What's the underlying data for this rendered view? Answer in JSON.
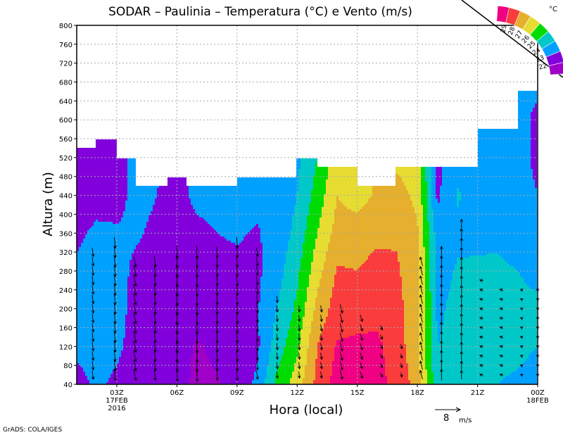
{
  "chart_data": {
    "type": "heatmap",
    "subtype": "filled-contour-with-wind-vectors",
    "title": "SODAR – Paulinia – Temperatura (°C) e Vento (m/s)",
    "xlabel": "Hora (local)",
    "ylabel": "Altura (m)",
    "xlim_hours": [
      1,
      24
    ],
    "ylim": [
      40,
      800
    ],
    "yticks": [
      40,
      80,
      120,
      160,
      200,
      240,
      280,
      320,
      360,
      400,
      440,
      480,
      520,
      560,
      600,
      640,
      680,
      720,
      760,
      800
    ],
    "xticks": [
      {
        "hour": 3,
        "label": "03Z",
        "sub1": "17FEB",
        "sub2": "2016"
      },
      {
        "hour": 6,
        "label": "06Z"
      },
      {
        "hour": 9,
        "label": "09Z"
      },
      {
        "hour": 12,
        "label": "12Z"
      },
      {
        "hour": 15,
        "label": "15Z"
      },
      {
        "hour": 18,
        "label": "18Z"
      },
      {
        "hour": 21,
        "label": "21Z"
      },
      {
        "hour": 24,
        "label": "00Z",
        "sub1": "18FEB"
      }
    ],
    "grid": true,
    "legend": {
      "placement": "top-right",
      "unit": "°C",
      "levels": [
        22,
        23,
        24,
        25,
        26,
        27,
        28,
        29
      ],
      "labels": [
        "22",
        "23",
        "24",
        "25",
        "26",
        "27",
        "28",
        "29"
      ],
      "colors": [
        "#a000c8",
        "#8200dc",
        "#00a0ff",
        "#00c8c8",
        "#00dc00",
        "#e6dc32",
        "#e6af2d",
        "#fa3c3c",
        "#f00082"
      ]
    },
    "heights": [
      40,
      120,
      200,
      280,
      360,
      440,
      520,
      600,
      680
    ],
    "hours": [
      1,
      2,
      3,
      4,
      5,
      6,
      7,
      8,
      9,
      10,
      11,
      12,
      13,
      14,
      15,
      16,
      17,
      18,
      19,
      20,
      21,
      22,
      23,
      24
    ],
    "temperature": [
      [
        22.6,
        23.3,
        23.3,
        23.2,
        22.8,
        22.5,
        22.5,
        22.5,
        22.5
      ],
      [
        23.2,
        23.4,
        23.4,
        23.4,
        23.2,
        22.6,
        22.5,
        22.5,
        22.5
      ],
      [
        22.8,
        23.2,
        23.3,
        23.3,
        23.1,
        22.7,
        22.6,
        22.6,
        22.6
      ],
      [
        22.5,
        22.6,
        22.7,
        22.8,
        23.1,
        23.3,
        23.3,
        23.3,
        23.3
      ],
      [
        22.4,
        22.5,
        22.6,
        22.7,
        22.8,
        23.0,
        23.1,
        23.1,
        23.1
      ],
      [
        22.3,
        22.4,
        22.5,
        22.6,
        22.7,
        22.7,
        22.7,
        22.7,
        22.7
      ],
      [
        21.8,
        21.9,
        22.4,
        22.6,
        22.8,
        23.2,
        23.2,
        23.2,
        23.2
      ],
      [
        21.9,
        22.2,
        22.5,
        22.7,
        23.0,
        23.3,
        23.3,
        23.3,
        23.3
      ],
      [
        22.4,
        22.6,
        22.7,
        22.8,
        23.1,
        23.4,
        23.4,
        23.4,
        23.4
      ],
      [
        23.2,
        22.8,
        22.9,
        22.8,
        22.9,
        23.3,
        23.3,
        23.3,
        23.3
      ],
      [
        25.3,
        24.5,
        24.0,
        23.6,
        23.4,
        23.3,
        23.3,
        23.3,
        23.3
      ],
      [
        26.5,
        25.8,
        25.2,
        24.8,
        24.3,
        24.0,
        23.8,
        23.8,
        23.8
      ],
      [
        28.3,
        28.0,
        27.3,
        26.6,
        26.0,
        25.4,
        25.0,
        25.0,
        25.0
      ],
      [
        29.4,
        29.1,
        28.5,
        28.1,
        27.4,
        27.0,
        26.6,
        26.6,
        26.6
      ],
      [
        29.3,
        29.2,
        28.6,
        28.0,
        27.6,
        26.5,
        26.5,
        26.5,
        26.5
      ],
      [
        29.2,
        29.2,
        28.7,
        28.3,
        27.8,
        27.2,
        27.0,
        27.0,
        27.0
      ],
      [
        28.8,
        28.5,
        28.3,
        28.1,
        27.9,
        27.3,
        26.8,
        26.8,
        26.8
      ],
      [
        27.5,
        27.2,
        27.3,
        27.4,
        27.1,
        26.8,
        26.5,
        26.5,
        26.5
      ],
      [
        24.3,
        24.0,
        23.8,
        23.6,
        23.5,
        22.8,
        22.8,
        22.8,
        22.8
      ],
      [
        24.2,
        24.4,
        24.3,
        24.1,
        23.8,
        24.1,
        23.6,
        23.6,
        23.6
      ],
      [
        24.3,
        24.5,
        24.5,
        24.2,
        23.7,
        23.5,
        23.5,
        23.5,
        23.5
      ],
      [
        24.0,
        24.4,
        24.5,
        24.2,
        23.8,
        23.5,
        23.5,
        23.5,
        23.5
      ],
      [
        23.8,
        24.3,
        24.4,
        24.0,
        23.5,
        23.4,
        23.3,
        23.3,
        23.3
      ],
      [
        23.5,
        24.0,
        24.3,
        23.6,
        23.4,
        23.0,
        22.8,
        22.8,
        23.2
      ]
    ],
    "data_ceiling": [
      {
        "from": 1,
        "to": 2,
        "top": 540
      },
      {
        "from": 2,
        "to": 3,
        "top": 560
      },
      {
        "from": 3,
        "to": 4.0,
        "top": 520
      },
      {
        "from": 4.0,
        "to": 5.5,
        "top": 460
      },
      {
        "from": 5.5,
        "to": 6.5,
        "top": 480
      },
      {
        "from": 6.5,
        "to": 9,
        "top": 460
      },
      {
        "from": 9,
        "to": 12,
        "top": 480
      },
      {
        "from": 12,
        "to": 13,
        "top": 520
      },
      {
        "from": 13,
        "to": 15,
        "top": 500
      },
      {
        "from": 15,
        "to": 16.9,
        "top": 460
      },
      {
        "from": 16.9,
        "to": 21,
        "top": 500
      },
      {
        "from": 21,
        "to": 23,
        "top": 580
      },
      {
        "from": 23,
        "to": 24,
        "top": 660
      }
    ],
    "wind": [
      {
        "hour": 1.8,
        "u": 0.5,
        "v": -4,
        "top": 320
      },
      {
        "hour": 2.9,
        "u": 0.5,
        "v": -5,
        "top": 340
      },
      {
        "hour": 3.9,
        "u": 1,
        "v": -5,
        "top": 300
      },
      {
        "hour": 4.9,
        "u": 0.5,
        "v": -5,
        "top": 300
      },
      {
        "hour": 6.0,
        "u": 0.3,
        "v": -6,
        "top": 320
      },
      {
        "hour": 7.0,
        "u": 0.2,
        "v": -6,
        "top": 320
      },
      {
        "hour": 8.0,
        "u": 0.2,
        "v": -5,
        "top": 320
      },
      {
        "hour": 9.0,
        "u": 0.3,
        "v": -5,
        "top": 340
      },
      {
        "hour": 10.0,
        "u": 0.5,
        "v": -4,
        "top": 320
      },
      {
        "hour": 11.0,
        "u": 0.3,
        "v": -3,
        "top": 220
      },
      {
        "hour": 12.1,
        "u": 0.3,
        "v": -3,
        "top": 200
      },
      {
        "hour": 13.2,
        "u": 0.5,
        "v": -3,
        "top": 200
      },
      {
        "hour": 14.2,
        "u": 1,
        "v": -4,
        "top": 200
      },
      {
        "hour": 15.2,
        "u": 1,
        "v": -3,
        "top": 180
      },
      {
        "hour": 16.2,
        "u": 1,
        "v": -2,
        "top": 160
      },
      {
        "hour": 17.2,
        "u": 0.5,
        "v": -2,
        "top": 130
      },
      {
        "hour": 18.2,
        "u": -1,
        "v": 4,
        "top": 300
      },
      {
        "hour": 19.2,
        "u": 0,
        "v": 5,
        "top": 320
      },
      {
        "hour": 20.2,
        "u": 0,
        "v": 4,
        "top": 380
      },
      {
        "hour": 21.2,
        "u": -1.5,
        "v": 0.5,
        "top": 260
      },
      {
        "hour": 22.2,
        "u": -1.5,
        "v": 0.5,
        "top": 240
      },
      {
        "hour": 23.2,
        "u": -1,
        "v": 0.5,
        "top": 240
      },
      {
        "hour": 24.0,
        "u": -1,
        "v": 0.5,
        "top": 240
      }
    ],
    "wind_reference": {
      "value": 8,
      "label": "8",
      "unit": "m/s"
    },
    "credit": "GrADS: COLA/IGES"
  }
}
